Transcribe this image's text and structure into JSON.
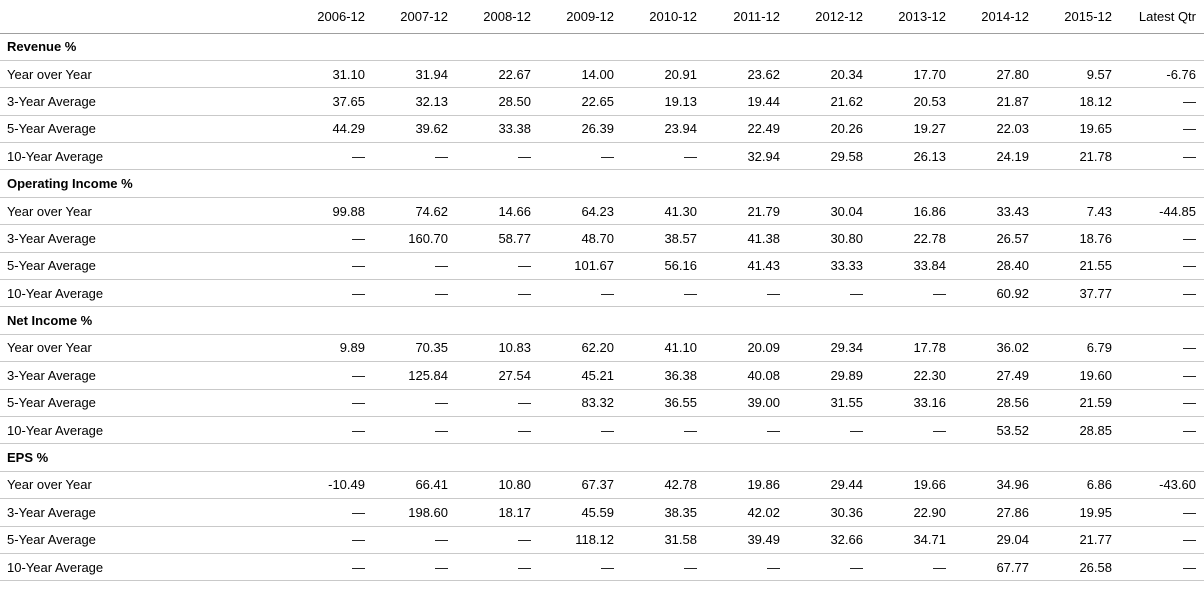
{
  "chart_data": {
    "type": "table",
    "columns": [
      "",
      "2006-12",
      "2007-12",
      "2008-12",
      "2009-12",
      "2010-12",
      "2011-12",
      "2012-12",
      "2013-12",
      "2014-12",
      "2015-12",
      "Latest Qtr"
    ],
    "sections": [
      {
        "title": "Revenue %",
        "rows": [
          {
            "label": "Year over Year",
            "values": [
              "31.10",
              "31.94",
              "22.67",
              "14.00",
              "20.91",
              "23.62",
              "20.34",
              "17.70",
              "27.80",
              "9.57",
              "-6.76"
            ]
          },
          {
            "label": "3-Year Average",
            "values": [
              "37.65",
              "32.13",
              "28.50",
              "22.65",
              "19.13",
              "19.44",
              "21.62",
              "20.53",
              "21.87",
              "18.12",
              "—"
            ]
          },
          {
            "label": "5-Year Average",
            "values": [
              "44.29",
              "39.62",
              "33.38",
              "26.39",
              "23.94",
              "22.49",
              "20.26",
              "19.27",
              "22.03",
              "19.65",
              "—"
            ]
          },
          {
            "label": "10-Year Average",
            "values": [
              "—",
              "—",
              "—",
              "—",
              "—",
              "32.94",
              "29.58",
              "26.13",
              "24.19",
              "21.78",
              "—"
            ]
          }
        ]
      },
      {
        "title": "Operating Income %",
        "rows": [
          {
            "label": "Year over Year",
            "values": [
              "99.88",
              "74.62",
              "14.66",
              "64.23",
              "41.30",
              "21.79",
              "30.04",
              "16.86",
              "33.43",
              "7.43",
              "-44.85"
            ]
          },
          {
            "label": "3-Year Average",
            "values": [
              "—",
              "160.70",
              "58.77",
              "48.70",
              "38.57",
              "41.38",
              "30.80",
              "22.78",
              "26.57",
              "18.76",
              "—"
            ]
          },
          {
            "label": "5-Year Average",
            "values": [
              "—",
              "—",
              "—",
              "101.67",
              "56.16",
              "41.43",
              "33.33",
              "33.84",
              "28.40",
              "21.55",
              "—"
            ]
          },
          {
            "label": "10-Year Average",
            "values": [
              "—",
              "—",
              "—",
              "—",
              "—",
              "—",
              "—",
              "—",
              "60.92",
              "37.77",
              "—"
            ]
          }
        ]
      },
      {
        "title": "Net Income %",
        "rows": [
          {
            "label": "Year over Year",
            "values": [
              "9.89",
              "70.35",
              "10.83",
              "62.20",
              "41.10",
              "20.09",
              "29.34",
              "17.78",
              "36.02",
              "6.79",
              "—"
            ]
          },
          {
            "label": "3-Year Average",
            "values": [
              "—",
              "125.84",
              "27.54",
              "45.21",
              "36.38",
              "40.08",
              "29.89",
              "22.30",
              "27.49",
              "19.60",
              "—"
            ]
          },
          {
            "label": "5-Year Average",
            "values": [
              "—",
              "—",
              "—",
              "83.32",
              "36.55",
              "39.00",
              "31.55",
              "33.16",
              "28.56",
              "21.59",
              "—"
            ]
          },
          {
            "label": "10-Year Average",
            "values": [
              "—",
              "—",
              "—",
              "—",
              "—",
              "—",
              "—",
              "—",
              "53.52",
              "28.85",
              "—"
            ]
          }
        ]
      },
      {
        "title": "EPS %",
        "rows": [
          {
            "label": "Year over Year",
            "values": [
              "-10.49",
              "66.41",
              "10.80",
              "67.37",
              "42.78",
              "19.86",
              "29.44",
              "19.66",
              "34.96",
              "6.86",
              "-43.60"
            ]
          },
          {
            "label": "3-Year Average",
            "values": [
              "—",
              "198.60",
              "18.17",
              "45.59",
              "38.35",
              "42.02",
              "30.36",
              "22.90",
              "27.86",
              "19.95",
              "—"
            ]
          },
          {
            "label": "5-Year Average",
            "values": [
              "—",
              "—",
              "—",
              "118.12",
              "31.58",
              "39.49",
              "32.66",
              "34.71",
              "29.04",
              "21.77",
              "—"
            ]
          },
          {
            "label": "10-Year Average",
            "values": [
              "—",
              "—",
              "—",
              "—",
              "—",
              "—",
              "—",
              "—",
              "67.77",
              "26.58",
              "—"
            ]
          }
        ]
      }
    ],
    "layout": {
      "label_col_width": 282,
      "year_col_width": 83,
      "last_col_width": 92,
      "header_border_color": "#9f9f9f",
      "row_border_color": "#c9c9c9",
      "text_color": "#000000",
      "background_color": "#ffffff"
    }
  }
}
